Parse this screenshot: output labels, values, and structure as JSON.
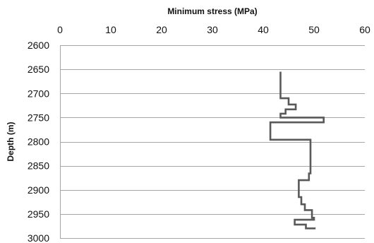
{
  "chart_data": {
    "type": "line",
    "title": "",
    "xlabel": "Minimum stress (MPa)",
    "ylabel": "Depth (m)",
    "x_axis_position": "top",
    "y_axis_inverted": true,
    "xlim": [
      0,
      60
    ],
    "ylim": [
      2600,
      3000
    ],
    "x_ticks": [
      0,
      10,
      20,
      30,
      40,
      50,
      60
    ],
    "y_ticks": [
      2600,
      2650,
      2700,
      2750,
      2800,
      2850,
      2900,
      2950,
      3000
    ],
    "grid": "horizontal",
    "legend": "none",
    "line_color": "#595959",
    "series": [
      {
        "points": [
          [
            43.4,
            2655
          ],
          [
            43.4,
            2710
          ],
          [
            45.0,
            2710
          ],
          [
            45.0,
            2723
          ],
          [
            46.4,
            2723
          ],
          [
            46.4,
            2733
          ],
          [
            44.4,
            2733
          ],
          [
            44.4,
            2742
          ],
          [
            43.4,
            2742
          ],
          [
            43.4,
            2750
          ],
          [
            51.9,
            2750
          ],
          [
            51.9,
            2760
          ],
          [
            41.4,
            2760
          ],
          [
            41.4,
            2796
          ],
          [
            49.3,
            2796
          ],
          [
            49.3,
            2866
          ],
          [
            49.0,
            2866
          ],
          [
            49.0,
            2880
          ],
          [
            47.0,
            2880
          ],
          [
            47.0,
            2915
          ],
          [
            47.5,
            2915
          ],
          [
            47.5,
            2930
          ],
          [
            48.2,
            2930
          ],
          [
            48.2,
            2942
          ],
          [
            49.6,
            2942
          ],
          [
            49.6,
            2958
          ],
          [
            50.0,
            2958
          ],
          [
            50.0,
            2962
          ],
          [
            46.2,
            2962
          ],
          [
            46.2,
            2972
          ],
          [
            48.4,
            2972
          ],
          [
            48.4,
            2980
          ],
          [
            50.3,
            2980
          ]
        ]
      }
    ]
  }
}
